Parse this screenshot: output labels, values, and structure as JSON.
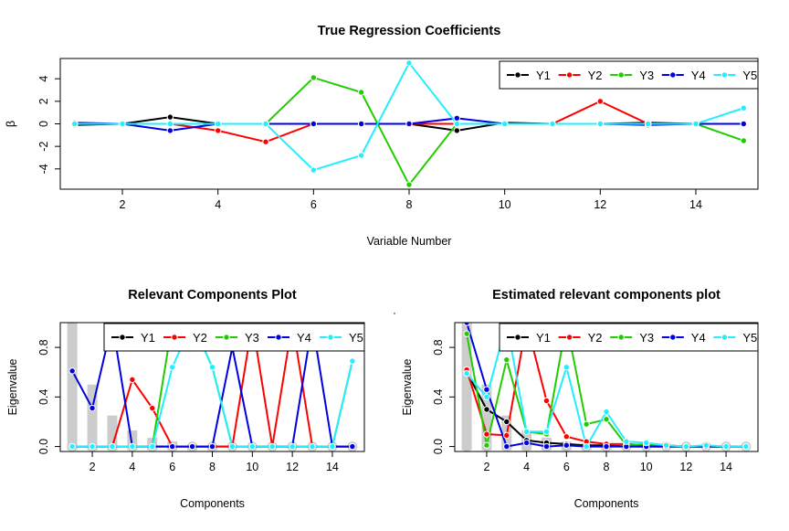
{
  "colors": {
    "Y1": "#000000",
    "Y2": "#ff0000",
    "Y3": "#22cc00",
    "Y4": "#0000e0",
    "Y5": "#22eeff",
    "bars": "#cccccc",
    "bar_points": "#cccccc"
  },
  "chart_data": [
    {
      "type": "line",
      "title": "True Regression Coefficients",
      "xlabel": "Variable Number",
      "ylabel": "β",
      "xlim": [
        0.7,
        15.3
      ],
      "ylim": [
        -5.8,
        5.8
      ],
      "x_ticks": [
        "2",
        "4",
        "6",
        "8",
        "10",
        "12",
        "14"
      ],
      "y_ticks": [
        "-4",
        "-2",
        "0",
        "2",
        "4"
      ],
      "x": [
        1,
        2,
        3,
        4,
        5,
        6,
        7,
        8,
        9,
        10,
        11,
        12,
        13,
        14,
        15
      ],
      "legend": [
        "Y1",
        "Y2",
        "Y3",
        "Y4",
        "Y5"
      ],
      "legend_position": "top-right",
      "series": [
        {
          "name": "Y1",
          "values": [
            -0.1,
            0,
            0.6,
            0,
            0,
            0,
            0,
            0,
            -0.6,
            0.1,
            0,
            0,
            0.1,
            0,
            0
          ]
        },
        {
          "name": "Y2",
          "values": [
            0,
            0,
            0,
            -0.6,
            -1.6,
            0,
            0,
            0,
            0,
            0,
            0,
            2.0,
            0,
            0,
            0
          ]
        },
        {
          "name": "Y3",
          "values": [
            0,
            0,
            0,
            0,
            0,
            4.1,
            2.8,
            -5.4,
            0,
            0,
            0,
            0,
            0,
            0,
            -1.5
          ]
        },
        {
          "name": "Y4",
          "values": [
            0.1,
            0,
            -0.6,
            0,
            0,
            0,
            0,
            0,
            0.5,
            0,
            0,
            0,
            -0.1,
            0,
            0
          ]
        },
        {
          "name": "Y5",
          "values": [
            0,
            0,
            0,
            0,
            0,
            -4.1,
            -2.8,
            5.4,
            0,
            0,
            0,
            0,
            0,
            0,
            1.4
          ]
        }
      ]
    },
    {
      "type": "line",
      "title": "Relevant Components Plot",
      "xlabel": "Components",
      "ylabel": "Eigenvalue",
      "xlim": [
        0.4,
        15.6
      ],
      "ylim": [
        -0.04,
        1.0
      ],
      "x_ticks": [
        "2",
        "4",
        "6",
        "8",
        "10",
        "12",
        "14"
      ],
      "y_ticks": [
        "0.0",
        "0.4",
        "0.8"
      ],
      "x": [
        1,
        2,
        3,
        4,
        5,
        6,
        7,
        8,
        9,
        10,
        11,
        12,
        13,
        14,
        15
      ],
      "bars": [
        1.0,
        0.5,
        0.25,
        0.13,
        0.07,
        0.04,
        0.02,
        0.01,
        0,
        0,
        0,
        0,
        0,
        0,
        0
      ],
      "legend": [
        "Y1",
        "Y2",
        "Y3",
        "Y4",
        "Y5"
      ],
      "legend_position": "top-right",
      "series": [
        {
          "name": "Y1",
          "values": [
            0,
            0,
            0,
            0,
            0,
            0,
            0,
            0,
            0,
            0,
            0,
            0,
            0,
            0,
            0
          ]
        },
        {
          "name": "Y2",
          "values": [
            0,
            0,
            0,
            0.54,
            0.31,
            0,
            0,
            0,
            0,
            1.0,
            0,
            1.0,
            0,
            0,
            0
          ]
        },
        {
          "name": "Y3",
          "values": [
            0,
            0,
            0,
            0,
            0,
            1.0,
            1.0,
            0.64,
            0,
            0,
            0,
            0,
            0,
            0,
            0.69
          ]
        },
        {
          "name": "Y4",
          "values": [
            0.61,
            0.31,
            1.0,
            0,
            0,
            0,
            0,
            0,
            0.8,
            0,
            0,
            0,
            1.0,
            0,
            0
          ]
        },
        {
          "name": "Y5",
          "values": [
            0,
            0,
            0,
            0,
            0,
            0.64,
            1.0,
            0.64,
            0,
            0,
            0,
            0,
            0,
            0,
            0.69
          ]
        }
      ]
    },
    {
      "type": "line",
      "title": "Estimated relevant components plot",
      "xlabel": "Components",
      "ylabel": "Eigenvalue",
      "xlim": [
        0.4,
        15.6
      ],
      "ylim": [
        -0.04,
        1.0
      ],
      "x_ticks": [
        "2",
        "4",
        "6",
        "8",
        "10",
        "12",
        "14"
      ],
      "y_ticks": [
        "0.0",
        "0.4",
        "0.8"
      ],
      "x": [
        1,
        2,
        3,
        4,
        5,
        6,
        7,
        8,
        9,
        10,
        11,
        12,
        13,
        14,
        15
      ],
      "bars": [
        1.0,
        0.5,
        0.25,
        0.13,
        0.07,
        0.04,
        0.02,
        0.01,
        0,
        0,
        0,
        0,
        0,
        0,
        0
      ],
      "legend": [
        "Y1",
        "Y2",
        "Y3",
        "Y4",
        "Y5"
      ],
      "legend_position": "top-right",
      "series": [
        {
          "name": "Y1",
          "values": [
            0.6,
            0.3,
            0.2,
            0.05,
            0.03,
            0.02,
            0.01,
            0.01,
            0,
            0,
            0,
            0,
            0,
            0,
            0
          ]
        },
        {
          "name": "Y2",
          "values": [
            0.62,
            0.1,
            0.09,
            1.0,
            0.37,
            0.08,
            0.04,
            0.02,
            0.02,
            0.01,
            0.01,
            0,
            0,
            0,
            0
          ]
        },
        {
          "name": "Y3",
          "values": [
            0.91,
            0.01,
            0.7,
            0.12,
            0.1,
            1.0,
            0.18,
            0.22,
            0.01,
            0.02,
            0.01,
            0,
            0,
            0,
            0
          ]
        },
        {
          "name": "Y4",
          "values": [
            1.0,
            0.46,
            0,
            0.03,
            0,
            0.01,
            0,
            0,
            0,
            0,
            0,
            0,
            0,
            0,
            0
          ]
        },
        {
          "name": "Y5",
          "values": [
            0.59,
            0.4,
            1.0,
            0.12,
            0.12,
            0.64,
            0,
            0.28,
            0.04,
            0.03,
            0.01,
            0,
            0.01,
            0,
            0
          ]
        }
      ]
    }
  ]
}
